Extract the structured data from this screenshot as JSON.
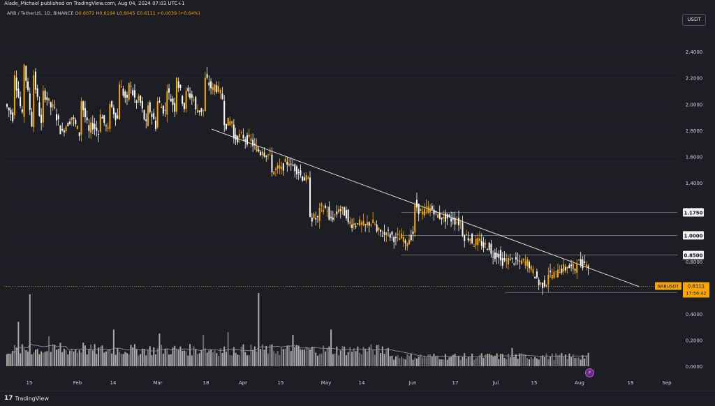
{
  "header": {
    "publisher_line": "Alade_Michael published on TradingView.com, Aug 04, 2024 07:03 UTC+1"
  },
  "symbol_info": {
    "name": "ARB / TetherUS, 1D, BINANCE",
    "o_label": "O",
    "o_value": "0.6072",
    "h_label": "H",
    "h_value": "0.6194",
    "l_label": "L",
    "l_value": "0.6045",
    "c_label": "C",
    "c_value": "0.6111",
    "change": "+0.0039 (+0.64%)"
  },
  "currency_button": "USDT",
  "footer": {
    "logo_mark": "17",
    "logo_text": "TradingView"
  },
  "colors": {
    "up": "#f7a600",
    "down": "#ffffff",
    "background": "#1d1e24",
    "volume_up": "#8a8a8a",
    "volume_down": "#d9d9d9",
    "trendline": "#d9d9d9"
  },
  "chart_data": {
    "type": "candlestick",
    "symbol": "ARBUSDT",
    "timeframe": "1D",
    "price_axis": {
      "ticks": [
        "2.4000",
        "2.2000",
        "2.0000",
        "1.8000",
        "1.6000",
        "1.4000",
        "1.2000",
        "1.0000",
        "0.8000"
      ],
      "range": [
        0.5,
        2.65
      ]
    },
    "volume_axis": {
      "ticks": [
        "0.4000",
        "0.2000",
        "0.0000"
      ],
      "range": [
        0,
        0.6
      ]
    },
    "x_axis_labels": [
      "15",
      "Feb",
      "14",
      "Mar",
      "18",
      "Apr",
      "15",
      "May",
      "14",
      "Jun",
      "17",
      "Jul",
      "15",
      "Aug",
      "19",
      "Sep"
    ],
    "levels": [
      {
        "label": "1.1750",
        "value": 1.175
      },
      {
        "label": "1.0000",
        "value": 1.0
      },
      {
        "label": "0.8500",
        "value": 0.85
      },
      {
        "label": "0.5650",
        "value": 0.565
      }
    ],
    "current_price": {
      "symbol_label": "ARBUSDT",
      "price": "0.6111",
      "countdown": "17:56:42",
      "value": 0.6111
    },
    "trendline": {
      "from_price": 1.81,
      "to_price": 0.61
    },
    "anchors": [
      [
        2.0,
        1.88
      ],
      [
        2.22,
        1.82
      ],
      [
        2.3,
        1.74
      ],
      [
        2.22,
        1.74
      ],
      [
        2.1,
        1.95
      ],
      [
        2.0,
        1.76
      ],
      [
        1.8,
        1.9
      ],
      [
        1.9,
        1.74
      ],
      [
        2.02,
        1.72
      ],
      [
        1.86,
        1.76
      ],
      [
        1.92,
        1.76
      ],
      [
        2.0,
        1.86
      ],
      [
        2.15,
        1.98
      ],
      [
        2.16,
        1.96
      ],
      [
        2.06,
        1.78
      ],
      [
        1.99,
        1.8
      ],
      [
        2.02,
        1.92
      ],
      [
        2.1,
        1.94
      ],
      [
        2.2,
        1.92
      ],
      [
        2.1,
        2.02
      ],
      [
        1.96,
        1.95
      ],
      [
        2.2,
        2.08
      ],
      [
        2.15,
        2.02
      ],
      [
        1.84,
        1.88
      ],
      [
        1.74,
        1.76
      ],
      [
        1.74,
        1.72
      ],
      [
        1.68,
        1.62
      ],
      [
        1.64,
        1.6
      ],
      [
        1.48,
        1.52
      ],
      [
        1.52,
        1.58
      ],
      [
        1.54,
        1.48
      ],
      [
        1.46,
        1.4
      ],
      [
        1.14,
        1.12
      ],
      [
        1.21,
        1.2
      ],
      [
        1.12,
        1.18
      ],
      [
        1.2,
        1.16
      ],
      [
        1.1,
        1.08
      ],
      [
        1.09,
        1.06
      ],
      [
        1.1,
        1.08
      ],
      [
        1.03,
        1.0
      ],
      [
        1.02,
        0.98
      ],
      [
        0.98,
        0.98
      ],
      [
        0.94,
        1.04
      ],
      [
        1.24,
        1.14
      ],
      [
        1.2,
        1.2
      ],
      [
        1.16,
        1.14
      ],
      [
        1.14,
        1.12
      ],
      [
        1.12,
        1.09
      ],
      [
        1.0,
        0.98
      ],
      [
        0.94,
        0.95
      ],
      [
        0.92,
        0.92
      ],
      [
        0.86,
        0.86
      ],
      [
        0.81,
        0.8
      ],
      [
        0.81,
        0.8
      ],
      [
        0.8,
        0.79
      ],
      [
        0.75,
        0.66
      ],
      [
        0.62,
        0.65
      ],
      [
        0.7,
        0.7
      ],
      [
        0.74,
        0.75
      ],
      [
        0.76,
        0.74
      ],
      [
        0.79,
        0.79
      ],
      [
        0.78,
        0.73
      ],
      [
        0.69,
        0.66
      ],
      [
        0.62,
        0.61
      ]
    ],
    "volume_peaks": [
      [
        6,
        0.34
      ],
      [
        12,
        0.55
      ],
      [
        22,
        0.23
      ],
      [
        28,
        0.18
      ],
      [
        40,
        0.18
      ],
      [
        56,
        0.28
      ],
      [
        80,
        0.25
      ],
      [
        103,
        0.24
      ],
      [
        116,
        0.26
      ],
      [
        132,
        0.56
      ],
      [
        150,
        0.24
      ],
      [
        170,
        0.28
      ],
      [
        200,
        0.14
      ],
      [
        240,
        0.1
      ],
      [
        265,
        0.14
      ],
      [
        280,
        0.08
      ],
      [
        296,
        0.07
      ],
      [
        306,
        0.06
      ]
    ],
    "volume_ma_label": ""
  }
}
